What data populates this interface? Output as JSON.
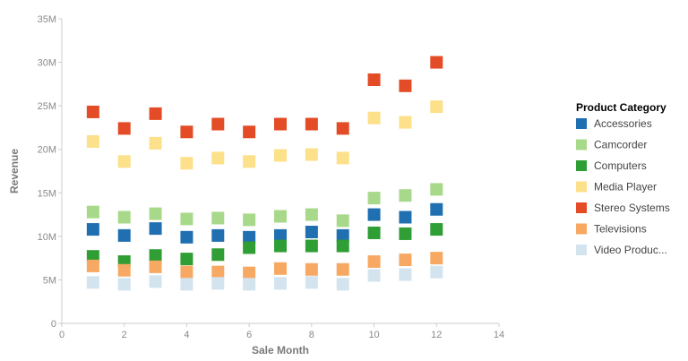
{
  "chart_data": {
    "type": "scatter",
    "title": "",
    "xlabel": "Sale Month",
    "ylabel": "Revenue",
    "xlim": [
      0,
      14
    ],
    "ylim": [
      0,
      35000000
    ],
    "x_ticks": [
      0,
      2,
      4,
      6,
      8,
      10,
      12,
      14
    ],
    "x_tick_labels": [
      "0",
      "2",
      "4",
      "6",
      "8",
      "10",
      "12",
      "14"
    ],
    "y_ticks": [
      0,
      5000000,
      10000000,
      15000000,
      20000000,
      25000000,
      30000000,
      35000000
    ],
    "y_tick_labels": [
      "0",
      "5M",
      "10M",
      "15M",
      "20M",
      "25M",
      "30M",
      "35M"
    ],
    "grid": false,
    "legend_title": "Product Category",
    "legend_position": "right",
    "marker": "square",
    "x": [
      1,
      2,
      3,
      4,
      5,
      6,
      7,
      8,
      9,
      10,
      11,
      12
    ],
    "series": [
      {
        "name": "Accessories",
        "color": "#1f6fb1",
        "values": [
          10800000,
          10100000,
          10900000,
          9900000,
          10100000,
          9900000,
          10100000,
          10500000,
          10100000,
          12500000,
          12200000,
          13100000
        ]
      },
      {
        "name": "Camcorder",
        "color": "#a8d98b",
        "values": [
          12800000,
          12200000,
          12600000,
          12000000,
          12100000,
          11900000,
          12300000,
          12500000,
          11800000,
          14400000,
          14700000,
          15400000
        ]
      },
      {
        "name": "Computers",
        "color": "#2f9e34",
        "values": [
          7700000,
          7100000,
          7800000,
          7400000,
          7900000,
          8700000,
          8900000,
          8900000,
          8900000,
          10400000,
          10300000,
          10800000
        ]
      },
      {
        "name": "Media Player",
        "color": "#fce08a",
        "values": [
          20900000,
          18600000,
          20700000,
          18400000,
          19000000,
          18600000,
          19300000,
          19400000,
          19000000,
          23600000,
          23100000,
          24900000
        ]
      },
      {
        "name": "Stereo Systems",
        "color": "#e34c26",
        "values": [
          24300000,
          22400000,
          24100000,
          22000000,
          22900000,
          22000000,
          22900000,
          22900000,
          22400000,
          28000000,
          27300000,
          30000000
        ]
      },
      {
        "name": "Televisions",
        "color": "#f7a964",
        "values": [
          6600000,
          6100000,
          6500000,
          5900000,
          5900000,
          5800000,
          6300000,
          6200000,
          6200000,
          7100000,
          7300000,
          7500000
        ]
      },
      {
        "name": "Video Produc...",
        "color": "#d3e4ef",
        "values": [
          4700000,
          4500000,
          4800000,
          4500000,
          4600000,
          4500000,
          4600000,
          4700000,
          4500000,
          5500000,
          5600000,
          5900000
        ]
      }
    ]
  }
}
